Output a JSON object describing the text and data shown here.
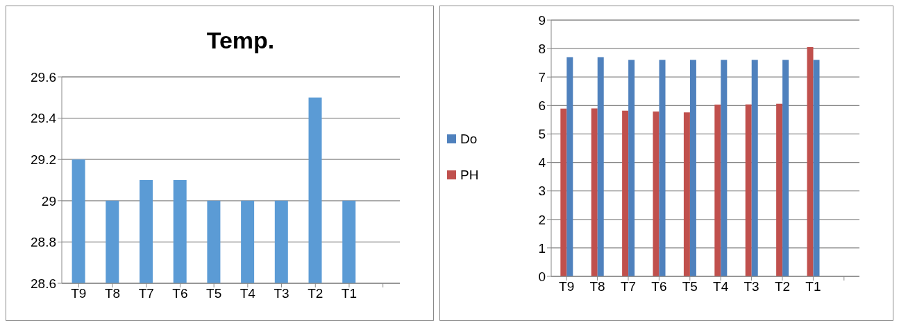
{
  "chart_data": [
    {
      "type": "bar",
      "title": "Temp.",
      "categories": [
        "T9",
        "T8",
        "T7",
        "T6",
        "T5",
        "T4",
        "T3",
        "T2",
        "T1",
        null
      ],
      "values": [
        29.2,
        29,
        29.1,
        29.1,
        29,
        29,
        29,
        29.5,
        29,
        null
      ],
      "color": "#5b9bd5",
      "ylim": [
        28.6,
        29.6
      ],
      "yticks": [
        28.6,
        28.8,
        29,
        29.2,
        29.4,
        29.6
      ],
      "grid": "y"
    },
    {
      "type": "bar",
      "categories": [
        "T9",
        "T8",
        "T7",
        "T6",
        "T5",
        "T4",
        "T3",
        "T2",
        "T1",
        null
      ],
      "series": [
        {
          "name": "Do",
          "color": "#4f81bd",
          "values": [
            7.7,
            7.7,
            7.6,
            7.6,
            7.6,
            7.6,
            7.6,
            7.6,
            7.6,
            null
          ]
        },
        {
          "name": "PH",
          "color": "#c0504d",
          "values": [
            5.89,
            5.9,
            5.82,
            5.79,
            5.76,
            6.03,
            6.04,
            6.06,
            8.05,
            null
          ]
        }
      ],
      "ylim": [
        0,
        9
      ],
      "yticks": [
        0,
        1,
        2,
        3,
        4,
        5,
        6,
        7,
        8,
        9
      ],
      "grid": "y",
      "legend": "left"
    }
  ]
}
